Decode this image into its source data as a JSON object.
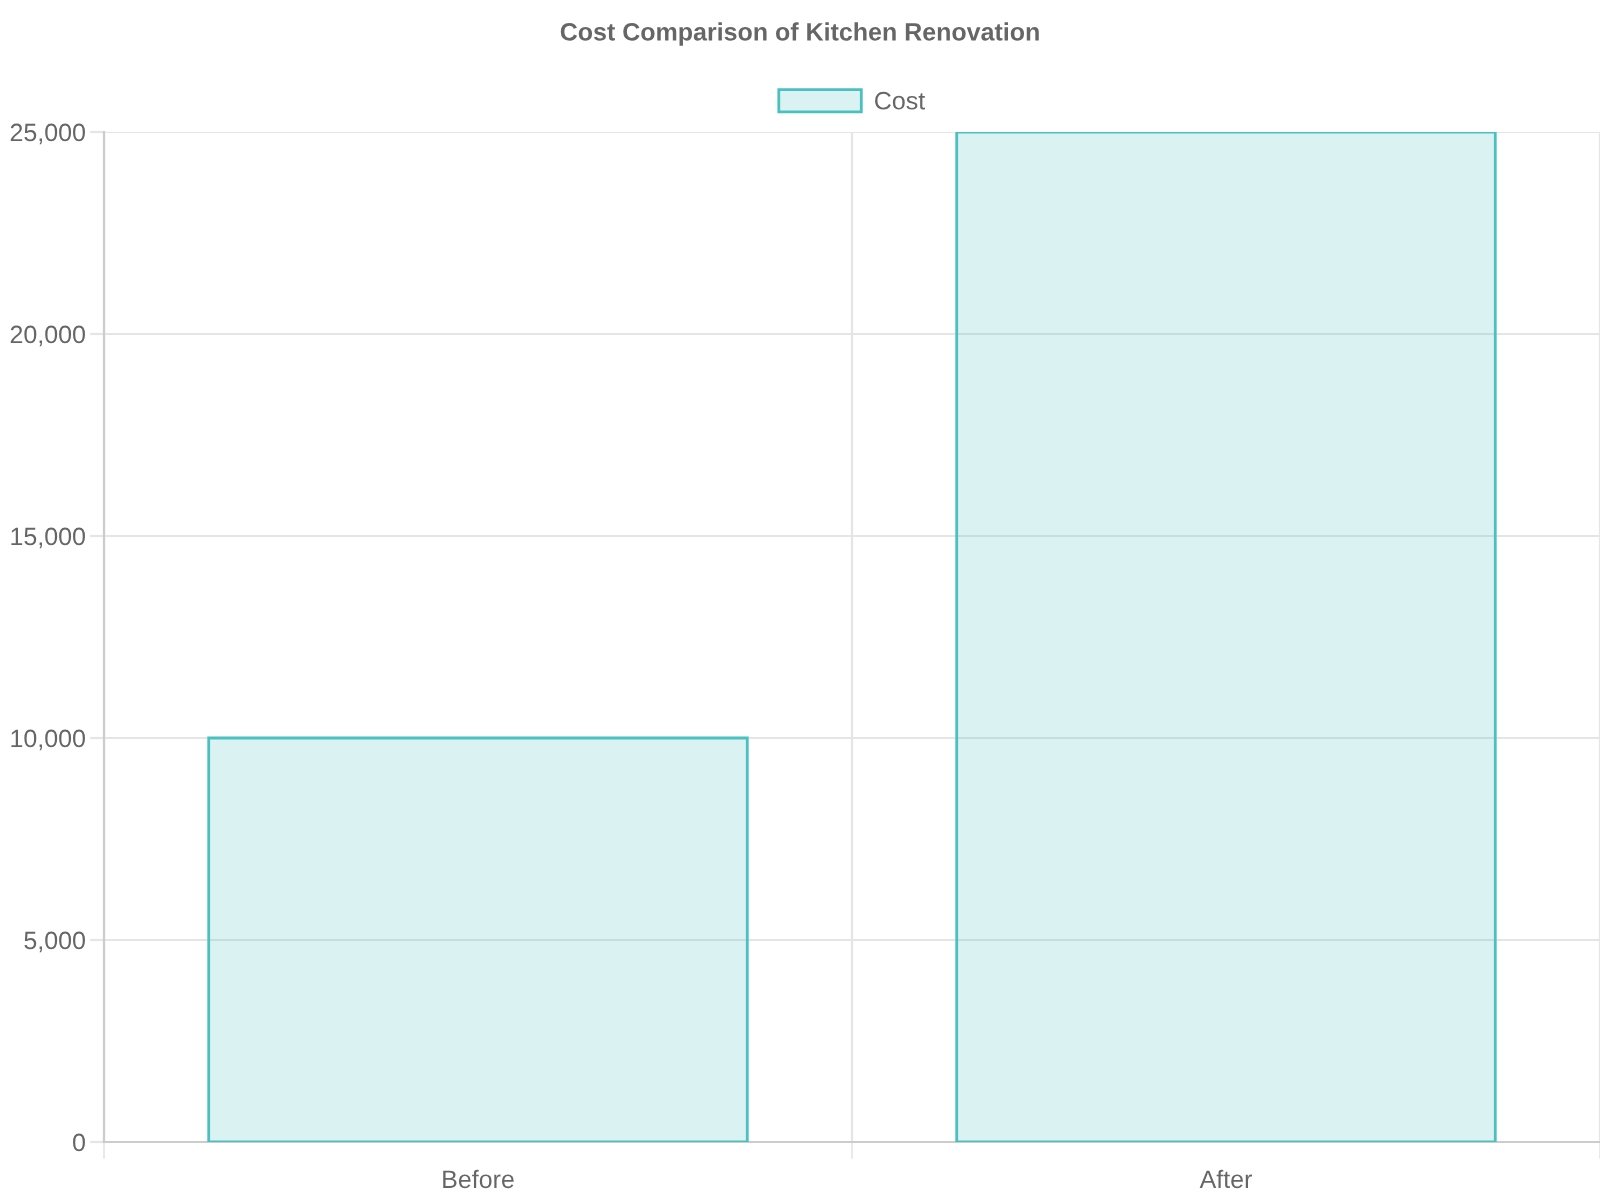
{
  "chart_data": {
    "type": "bar",
    "title": "Cost Comparison of Kitchen Renovation",
    "categories": [
      "Before",
      "After"
    ],
    "series": [
      {
        "name": "Cost",
        "color": "#4bc0c0",
        "values": [
          10000,
          25000
        ]
      }
    ],
    "ylim": [
      0,
      25000
    ],
    "yticks": [
      {
        "value": 0,
        "label": "0"
      },
      {
        "value": 5000,
        "label": "5,000"
      },
      {
        "value": 10000,
        "label": "10,000"
      },
      {
        "value": 15000,
        "label": "15,000"
      },
      {
        "value": 20000,
        "label": "20,000"
      },
      {
        "value": 25000,
        "label": "25,000"
      }
    ],
    "grid": true,
    "legend": "top"
  }
}
